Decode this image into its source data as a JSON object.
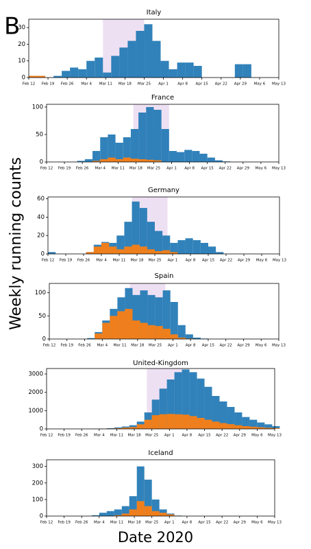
{
  "panel_label": "B",
  "ylabel": "Weekly running counts",
  "xlabel": "Date 2020",
  "chart_data": [
    {
      "type": "bar",
      "title": "Italy",
      "xlim": [
        0,
        91
      ],
      "ylim": [
        0,
        35
      ],
      "yticks": [
        0,
        10,
        20,
        30
      ],
      "span": [
        27,
        42
      ],
      "xticks": [
        {
          "value": 0,
          "label": "Feb 12"
        },
        {
          "value": 7,
          "label": "Feb 19"
        },
        {
          "value": 14,
          "label": "Feb 26"
        },
        {
          "value": 21,
          "label": "Mar 4"
        },
        {
          "value": 28,
          "label": "Mar 11"
        },
        {
          "value": 35,
          "label": "Mar 18"
        },
        {
          "value": 42,
          "label": "Mar 25"
        },
        {
          "value": 49,
          "label": "Apr 1"
        },
        {
          "value": 56,
          "label": "Apr 8"
        },
        {
          "value": 63,
          "label": "Apr 15"
        },
        {
          "value": 70,
          "label": "Apr 22"
        },
        {
          "value": 77,
          "label": "Apr 29"
        },
        {
          "value": 84,
          "label": "May 6"
        },
        {
          "value": 91,
          "label": "May 13"
        }
      ],
      "x": [
        0,
        3,
        6,
        9,
        12,
        15,
        18,
        21,
        24,
        27,
        30,
        33,
        36,
        39,
        42,
        45,
        48,
        51,
        54,
        57,
        60,
        63,
        66,
        69,
        72,
        75,
        78,
        81,
        84,
        87,
        90
      ],
      "series": [
        {
          "color": "#1f77b4",
          "values": [
            1,
            1,
            0,
            1,
            4,
            6,
            5,
            10,
            12,
            3,
            13,
            18,
            22,
            28,
            32,
            22,
            10,
            5,
            9,
            9,
            7,
            0,
            0,
            0,
            0,
            8,
            8,
            0,
            0,
            0,
            0
          ]
        },
        {
          "color": "#ff7f0e",
          "values": [
            1,
            1,
            0,
            0,
            0,
            0,
            0,
            0,
            0,
            0,
            0,
            0,
            0,
            0,
            0,
            0,
            0,
            0,
            0,
            0,
            0,
            0,
            0,
            0,
            0,
            0,
            0,
            0,
            0,
            0,
            0
          ]
        }
      ]
    },
    {
      "type": "bar",
      "title": "France",
      "xlim": [
        0,
        91
      ],
      "ylim": [
        0,
        105
      ],
      "yticks": [
        0,
        50,
        100
      ],
      "span": [
        34,
        48
      ],
      "xticks": [
        {
          "value": 0,
          "label": "Feb 12"
        },
        {
          "value": 7,
          "label": "Feb 19"
        },
        {
          "value": 14,
          "label": "Feb 26"
        },
        {
          "value": 21,
          "label": "Mar 4"
        },
        {
          "value": 28,
          "label": "Mar 11"
        },
        {
          "value": 35,
          "label": "Mar 18"
        },
        {
          "value": 42,
          "label": "Mar 25"
        },
        {
          "value": 49,
          "label": "Apr 1"
        },
        {
          "value": 56,
          "label": "Apr 8"
        },
        {
          "value": 63,
          "label": "Apr 15"
        },
        {
          "value": 70,
          "label": "Apr 22"
        },
        {
          "value": 77,
          "label": "Apr 29"
        },
        {
          "value": 84,
          "label": "May 6"
        },
        {
          "value": 91,
          "label": "May 13"
        }
      ],
      "x": [
        0,
        3,
        6,
        9,
        12,
        15,
        18,
        21,
        24,
        27,
        30,
        33,
        36,
        39,
        42,
        45,
        48,
        51,
        54,
        57,
        60,
        63,
        66,
        69,
        72,
        75,
        78,
        81,
        84,
        87,
        90
      ],
      "series": [
        {
          "color": "#1f77b4",
          "values": [
            0,
            0,
            0,
            0,
            2,
            5,
            20,
            45,
            50,
            35,
            45,
            60,
            90,
            100,
            95,
            60,
            20,
            18,
            22,
            20,
            15,
            8,
            3,
            1,
            0,
            0,
            0,
            0,
            0,
            0,
            0
          ]
        },
        {
          "color": "#ff7f0e",
          "values": [
            0,
            0,
            0,
            0,
            0,
            0,
            2,
            5,
            8,
            5,
            8,
            6,
            5,
            4,
            3,
            0,
            0,
            0,
            0,
            0,
            0,
            0,
            0,
            0,
            0,
            0,
            0,
            0,
            0,
            0,
            0
          ]
        }
      ]
    },
    {
      "type": "bar",
      "title": "Germany",
      "xlim": [
        0,
        91
      ],
      "ylim": [
        0,
        62
      ],
      "yticks": [
        0,
        20,
        40,
        60
      ],
      "span": [
        33,
        47
      ],
      "xticks": [
        {
          "value": 0,
          "label": "Feb 12"
        },
        {
          "value": 7,
          "label": "Feb 19"
        },
        {
          "value": 14,
          "label": "Feb 26"
        },
        {
          "value": 21,
          "label": "Mar 4"
        },
        {
          "value": 28,
          "label": "Mar 11"
        },
        {
          "value": 35,
          "label": "Mar 18"
        },
        {
          "value": 42,
          "label": "Mar 25"
        },
        {
          "value": 49,
          "label": "Apr 1"
        },
        {
          "value": 56,
          "label": "Apr 8"
        },
        {
          "value": 63,
          "label": "Apr 15"
        },
        {
          "value": 70,
          "label": "Apr 22"
        },
        {
          "value": 77,
          "label": "Apr 29"
        },
        {
          "value": 84,
          "label": "May 6"
        },
        {
          "value": 91,
          "label": "May 13"
        }
      ],
      "x": [
        0,
        3,
        6,
        9,
        12,
        15,
        18,
        21,
        24,
        27,
        30,
        33,
        36,
        39,
        42,
        45,
        48,
        51,
        54,
        57,
        60,
        63,
        66,
        69,
        72,
        75,
        78,
        81,
        84,
        87,
        90
      ],
      "series": [
        {
          "color": "#1f77b4",
          "values": [
            2,
            0,
            0,
            0,
            0,
            2,
            10,
            13,
            12,
            20,
            35,
            57,
            50,
            35,
            25,
            20,
            12,
            15,
            17,
            15,
            12,
            8,
            2,
            0,
            0,
            0,
            0,
            0,
            0,
            0,
            0
          ]
        },
        {
          "color": "#ff7f0e",
          "values": [
            0,
            0,
            0,
            0,
            0,
            2,
            8,
            12,
            8,
            5,
            8,
            10,
            8,
            5,
            3,
            4,
            2,
            0,
            0,
            0,
            0,
            0,
            0,
            0,
            0,
            0,
            0,
            0,
            0,
            0,
            0
          ]
        }
      ]
    },
    {
      "type": "bar",
      "title": "Spain",
      "xlim": [
        0,
        91
      ],
      "ylim": [
        0,
        120
      ],
      "yticks": [
        0,
        50,
        100
      ],
      "span": [
        32,
        46
      ],
      "xticks": [
        {
          "value": 0,
          "label": "Feb 12"
        },
        {
          "value": 7,
          "label": "Feb 19"
        },
        {
          "value": 14,
          "label": "Feb 26"
        },
        {
          "value": 21,
          "label": "Mar 4"
        },
        {
          "value": 28,
          "label": "Mar 11"
        },
        {
          "value": 35,
          "label": "Mar 18"
        },
        {
          "value": 42,
          "label": "Mar 25"
        },
        {
          "value": 49,
          "label": "Apr 1"
        },
        {
          "value": 56,
          "label": "Apr 8"
        },
        {
          "value": 63,
          "label": "Apr 15"
        },
        {
          "value": 70,
          "label": "Apr 22"
        },
        {
          "value": 77,
          "label": "Apr 29"
        },
        {
          "value": 84,
          "label": "May 6"
        },
        {
          "value": 91,
          "label": "May 13"
        }
      ],
      "x": [
        0,
        3,
        6,
        9,
        12,
        15,
        18,
        21,
        24,
        27,
        30,
        33,
        36,
        39,
        42,
        45,
        48,
        51,
        54,
        57,
        60,
        63,
        66,
        69,
        72,
        75,
        78,
        81,
        84,
        87,
        90
      ],
      "series": [
        {
          "color": "#1f77b4",
          "values": [
            0,
            0,
            0,
            0,
            0,
            2,
            15,
            40,
            65,
            90,
            110,
            95,
            105,
            95,
            90,
            105,
            80,
            30,
            10,
            3,
            1,
            0,
            0,
            0,
            0,
            0,
            0,
            0,
            0,
            0,
            0
          ]
        },
        {
          "color": "#ff7f0e",
          "values": [
            0,
            0,
            0,
            0,
            0,
            0,
            12,
            35,
            50,
            60,
            65,
            40,
            35,
            30,
            28,
            22,
            10,
            3,
            1,
            0,
            0,
            0,
            0,
            0,
            0,
            0,
            0,
            0,
            0,
            0,
            0
          ]
        }
      ]
    },
    {
      "type": "bar",
      "title": "United-Kingdom",
      "xlim": [
        0,
        91
      ],
      "ylim": [
        0,
        3300
      ],
      "yticks": [
        0,
        1000,
        2000,
        3000
      ],
      "span": [
        40,
        54
      ],
      "xticks": [
        {
          "value": 0,
          "label": "Feb 12"
        },
        {
          "value": 7,
          "label": "Feb 19"
        },
        {
          "value": 14,
          "label": "Feb 26"
        },
        {
          "value": 21,
          "label": "Mar 4"
        },
        {
          "value": 28,
          "label": "Mar 11"
        },
        {
          "value": 35,
          "label": "Mar 18"
        },
        {
          "value": 42,
          "label": "Mar 25"
        },
        {
          "value": 49,
          "label": "Apr 1"
        },
        {
          "value": 56,
          "label": "Apr 8"
        },
        {
          "value": 63,
          "label": "Apr 15"
        },
        {
          "value": 70,
          "label": "Apr 22"
        },
        {
          "value": 77,
          "label": "Apr 29"
        },
        {
          "value": 84,
          "label": "May 6"
        },
        {
          "value": 91,
          "label": "May 13"
        }
      ],
      "x": [
        0,
        3,
        6,
        9,
        12,
        15,
        18,
        21,
        24,
        27,
        30,
        33,
        36,
        39,
        42,
        45,
        48,
        51,
        54,
        57,
        60,
        63,
        66,
        69,
        72,
        75,
        78,
        81,
        84,
        87,
        90
      ],
      "series": [
        {
          "color": "#1f77b4",
          "values": [
            0,
            0,
            0,
            0,
            0,
            0,
            10,
            20,
            40,
            80,
            130,
            200,
            400,
            900,
            1600,
            2200,
            2700,
            3100,
            3250,
            3100,
            2750,
            2300,
            1800,
            1500,
            1200,
            900,
            650,
            500,
            350,
            250,
            150
          ]
        },
        {
          "color": "#ff7f0e",
          "values": [
            0,
            0,
            0,
            0,
            0,
            0,
            5,
            10,
            20,
            40,
            70,
            100,
            250,
            500,
            750,
            800,
            820,
            800,
            780,
            700,
            600,
            500,
            400,
            320,
            260,
            200,
            150,
            120,
            90,
            60,
            40
          ]
        }
      ]
    },
    {
      "type": "bar",
      "title": "Iceland",
      "xlim": [
        0,
        91
      ],
      "ylim": [
        0,
        340
      ],
      "yticks": [
        0,
        100,
        200,
        300
      ],
      "xticks": [
        {
          "value": 0,
          "label": "Feb 12"
        },
        {
          "value": 7,
          "label": "Feb 19"
        },
        {
          "value": 14,
          "label": "Feb 26"
        },
        {
          "value": 21,
          "label": "Mar 4"
        },
        {
          "value": 28,
          "label": "Mar 11"
        },
        {
          "value": 35,
          "label": "Mar 18"
        },
        {
          "value": 42,
          "label": "Mar 25"
        },
        {
          "value": 49,
          "label": "Apr 1"
        },
        {
          "value": 56,
          "label": "Apr 8"
        },
        {
          "value": 63,
          "label": "Apr 15"
        },
        {
          "value": 70,
          "label": "Apr 22"
        },
        {
          "value": 77,
          "label": "Apr 29"
        },
        {
          "value": 84,
          "label": "May 6"
        },
        {
          "value": 91,
          "label": "May 13"
        }
      ],
      "x": [
        0,
        3,
        6,
        9,
        12,
        15,
        18,
        21,
        24,
        27,
        30,
        33,
        36,
        39,
        42,
        45,
        48,
        51,
        54,
        57,
        60,
        63,
        66,
        69,
        72,
        75,
        78,
        81,
        84,
        87,
        90
      ],
      "series": [
        {
          "color": "#1f77b4",
          "values": [
            0,
            0,
            0,
            0,
            0,
            0,
            5,
            20,
            30,
            40,
            60,
            120,
            300,
            220,
            100,
            40,
            15,
            3,
            0,
            0,
            0,
            0,
            0,
            0,
            0,
            0,
            0,
            0,
            0,
            0,
            0
          ]
        },
        {
          "color": "#ff7f0e",
          "values": [
            0,
            0,
            0,
            0,
            0,
            0,
            0,
            0,
            0,
            5,
            15,
            40,
            90,
            60,
            30,
            20,
            10,
            2,
            0,
            0,
            0,
            0,
            0,
            0,
            0,
            0,
            0,
            0,
            0,
            0,
            0
          ]
        }
      ]
    }
  ]
}
